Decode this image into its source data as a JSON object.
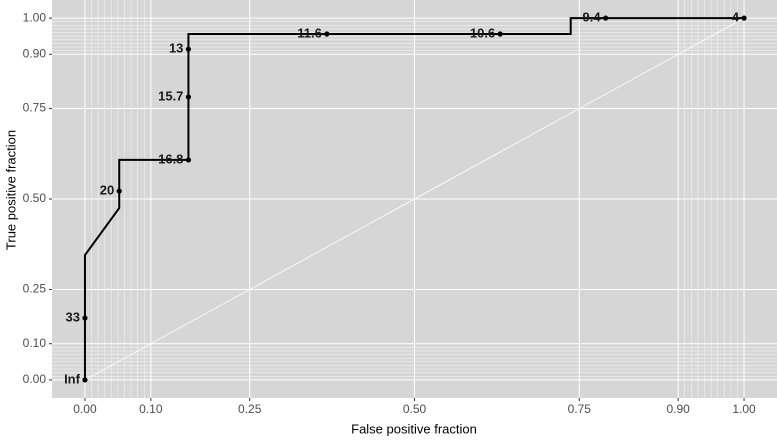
{
  "chart_data": {
    "type": "line",
    "xlabel": "False positive fraction",
    "ylabel": "True positive fraction",
    "x": [
      0,
      0,
      0.052,
      0.052,
      0.157,
      0.157,
      0.737,
      0.737,
      1
    ],
    "values": [
      0,
      0.345,
      0.475,
      0.608,
      0.608,
      0.956,
      0.956,
      1,
      1
    ],
    "color": "#000000",
    "points": {
      "x": [
        0,
        0,
        0.052,
        0.157,
        0.157,
        0.157,
        0.367,
        0.63,
        0.79,
        1
      ],
      "values": [
        0,
        0.171,
        0.522,
        0.608,
        0.782,
        0.914,
        0.956,
        0.956,
        1,
        1
      ],
      "labels": [
        "Inf",
        33,
        20,
        16.8,
        15.7,
        13,
        11.6,
        10.6,
        9.4,
        4
      ]
    },
    "xlim": [
      -0.05,
      1.05
    ],
    "ylim": [
      -0.05,
      1.05
    ],
    "xticks": [
      {
        "value": 0,
        "label": "0.00"
      },
      {
        "value": 0.1,
        "label": "0.10"
      },
      {
        "value": 0.25,
        "label": "0.25"
      },
      {
        "value": 0.5,
        "label": "0.50"
      },
      {
        "value": 0.75,
        "label": "0.75"
      },
      {
        "value": 0.9,
        "label": "0.90"
      },
      {
        "value": 1,
        "label": "1.00"
      }
    ],
    "yticks": [
      {
        "value": 0,
        "label": "0.00"
      },
      {
        "value": 0.1,
        "label": "0.10"
      },
      {
        "value": 0.25,
        "label": "0.25"
      },
      {
        "value": 0.5,
        "label": "0.50"
      },
      {
        "value": 0.75,
        "label": "0.75"
      },
      {
        "value": 0.9,
        "label": "0.90"
      },
      {
        "value": 1,
        "label": "1.00"
      }
    ],
    "minor_ticks": [
      0.01,
      0.02,
      0.03,
      0.04,
      0.05,
      0.06,
      0.07,
      0.08,
      0.09,
      0.91,
      0.92,
      0.93,
      0.94,
      0.95,
      0.96,
      0.97,
      0.98,
      0.99
    ],
    "grid": true
  }
}
